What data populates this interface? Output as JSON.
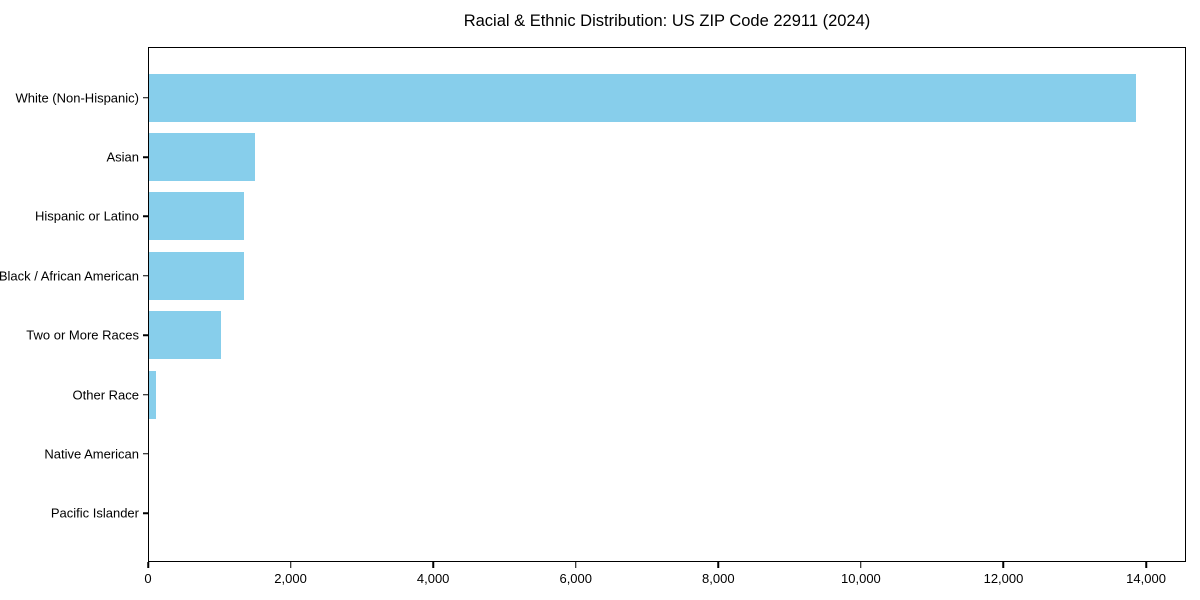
{
  "chart_data": {
    "type": "bar",
    "orientation": "horizontal",
    "title": "Racial & Ethnic Distribution: US ZIP Code 22911 (2024)",
    "categories": [
      "White (Non-Hispanic)",
      "Asian",
      "Hispanic or Latino",
      "Black / African American",
      "Two or More Races",
      "Other Race",
      "Native American",
      "Pacific Islander"
    ],
    "values": [
      13870,
      1490,
      1330,
      1340,
      1010,
      100,
      0,
      0
    ],
    "xlabel": "",
    "ylabel": "",
    "xlim": [
      0,
      14560
    ],
    "x_ticks": [
      0,
      2000,
      4000,
      6000,
      8000,
      10000,
      12000,
      14000
    ],
    "x_tick_labels": [
      "0",
      "2,000",
      "4,000",
      "6,000",
      "8,000",
      "10,000",
      "12,000",
      "14,000"
    ],
    "bar_color": "#87CEEB",
    "axis_color": "#000000",
    "background_color": "#ffffff",
    "grid": false,
    "legend": "none"
  }
}
